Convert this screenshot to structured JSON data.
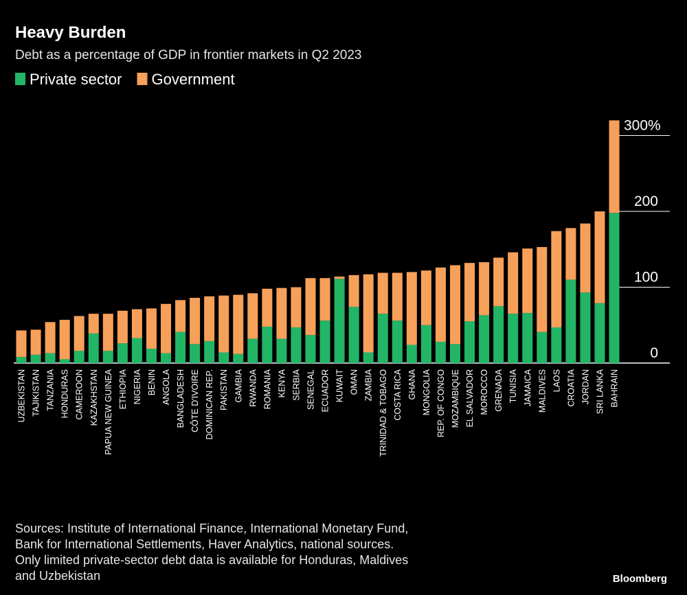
{
  "chart_data": {
    "type": "stacked_bar",
    "title": "Heavy Burden",
    "subtitle": "Debt as a percentage of GDP in frontier markets in Q2 2023",
    "categories": [
      "UZBEKISTAN",
      "TAJIKISTAN",
      "TANZANIA",
      "HONDURAS",
      "CAMEROON",
      "KAZAKHSTAN",
      "PAPUA NEW GUINEA",
      "ETHIOPIA",
      "NIGERIA",
      "BENIN",
      "ANGOLA",
      "BANGLADESH",
      "CÔTE D'IVOIRE",
      "DOMINICAN REP.",
      "PAKISTAN",
      "GAMBIA",
      "RWANDA",
      "ROMANIA",
      "KENYA",
      "SERBIA",
      "SENEGAL",
      "ECUADOR",
      "KUWAIT",
      "OMAN",
      "ZAMBIA",
      "TRINIDAD & TOBAGO",
      "COSTA RICA",
      "GHANA",
      "MONGOLIA",
      "REP. OF CONGO",
      "MOZAMBIQUE",
      "EL SALVADOR",
      "MOROCCO",
      "GRENADA",
      "TUNISIA",
      "JAMAICA",
      "MALDIVES",
      "LAOS",
      "CROATIA",
      "JORDAN",
      "SRI LANKA",
      "BAHRAIN"
    ],
    "series": [
      {
        "name": "Private sector",
        "color": "#22b566",
        "values": [
          8,
          11,
          13,
          5,
          16,
          39,
          16,
          26,
          33,
          19,
          13,
          41,
          25,
          29,
          14,
          12,
          32,
          48,
          32,
          47,
          37,
          56,
          111,
          74,
          14,
          65,
          56,
          24,
          50,
          28,
          25,
          55,
          63,
          75,
          65,
          66,
          41,
          47,
          110,
          93,
          79,
          198
        ]
      },
      {
        "name": "Government",
        "color": "#f7a05a",
        "values": [
          35,
          33,
          41,
          52,
          46,
          26,
          49,
          43,
          38,
          53,
          65,
          42,
          61,
          59,
          75,
          78,
          60,
          50,
          67,
          53,
          75,
          56,
          3,
          42,
          103,
          54,
          63,
          96,
          72,
          98,
          104,
          77,
          70,
          64,
          81,
          85,
          112,
          127,
          68,
          91,
          121,
          122
        ]
      }
    ],
    "ylim": [
      0,
      320
    ],
    "yticks": [
      0,
      100,
      200,
      {
        "value": 300,
        "label": "300%"
      }
    ],
    "note": [
      "Sources: Institute of International Finance, International Monetary Fund,",
      "Bank for International Settlements, Haver Analytics, national sources.",
      "Only limited private-sector debt data is available for Honduras, Maldives",
      "and Uzbekistan"
    ],
    "credit": "Bloomberg"
  }
}
